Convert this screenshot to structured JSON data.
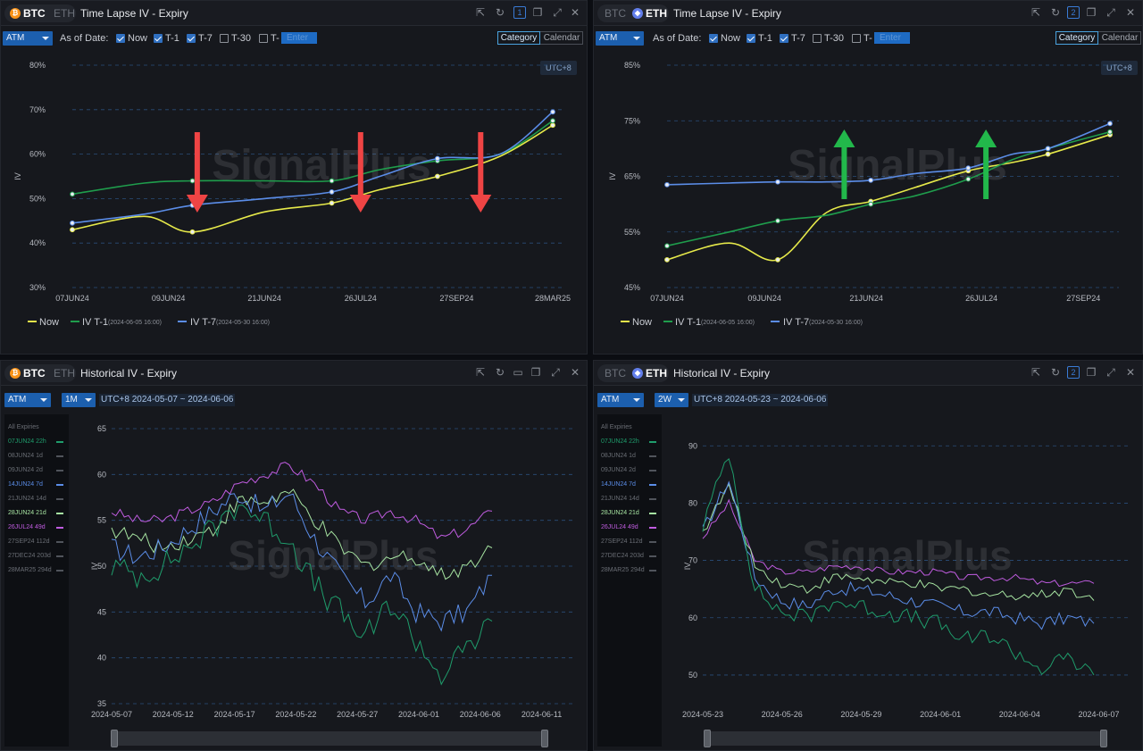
{
  "colors": {
    "now": "#e6e94a",
    "t1": "#1f9d4c",
    "t7": "#5b8de8",
    "grid": "#2a4d7a",
    "down_arrow": "#ef4444",
    "up_arrow": "#22b84b",
    "btc": "#f7931a",
    "eth": "#627eea"
  },
  "icons": [
    "share-icon",
    "refresh-icon",
    "link-group-icon",
    "copy-icon",
    "expand-icon",
    "close-icon",
    "folder-icon"
  ],
  "watermark": "SignalPlus",
  "panels": [
    {
      "coins": [
        "BTC",
        "ETH"
      ],
      "active_coin": "BTC",
      "title": "Time Lapse IV - Expiry",
      "link_group": "1",
      "controls": {
        "atm": "ATM",
        "as_of": "As of Date:",
        "checks": [
          {
            "label": "Now",
            "on": true
          },
          {
            "label": "T-1",
            "on": true
          },
          {
            "label": "T-7",
            "on": true
          },
          {
            "label": "T-30",
            "on": false
          },
          {
            "label": "T-",
            "on": false
          }
        ],
        "enter": "Enter",
        "category": "Category",
        "calendar": "Calendar"
      },
      "utc": "UTC+8",
      "legend": [
        {
          "label": "Now",
          "sub": ""
        },
        {
          "label": "IV T-1",
          "sub": "(2024-06-05 16:00)"
        },
        {
          "label": "IV T-7",
          "sub": "(2024-05-30 16:00)"
        }
      ],
      "chart_data": {
        "type": "line",
        "ylabel": "IV",
        "ylim": [
          30,
          80
        ],
        "yticks": [
          "30%",
          "40%",
          "50%",
          "60%",
          "70%",
          "80%"
        ],
        "xticks": [
          "07JUN24",
          "09JUN24",
          "21JUN24",
          "26JUL24",
          "27SEP24",
          "28MAR25"
        ],
        "x": [
          0,
          0.15,
          0.25,
          0.4,
          0.54,
          0.64,
          0.76,
          0.89,
          1.0
        ],
        "series": [
          {
            "name": "Now",
            "values": [
              43,
              46,
              42.5,
              47,
              49,
              52,
              55,
              59.5,
              66.5
            ]
          },
          {
            "name": "IV T-1",
            "values": [
              51,
              53.5,
              54,
              54,
              54,
              56.5,
              58.5,
              60,
              67.5
            ]
          },
          {
            "name": "IV T-7",
            "values": [
              44.5,
              46.5,
              48.5,
              50,
              51.5,
              55,
              59,
              60,
              69.5
            ]
          }
        ],
        "arrows": "down"
      }
    },
    {
      "coins": [
        "BTC",
        "ETH"
      ],
      "active_coin": "ETH",
      "title": "Time Lapse IV - Expiry",
      "link_group": "2",
      "controls": {
        "atm": "ATM",
        "as_of": "As of Date:",
        "checks": [
          {
            "label": "Now",
            "on": true
          },
          {
            "label": "T-1",
            "on": true
          },
          {
            "label": "T-7",
            "on": true
          },
          {
            "label": "T-30",
            "on": false
          },
          {
            "label": "T-",
            "on": false
          }
        ],
        "enter": "Enter",
        "category": "Category",
        "calendar": "Calendar"
      },
      "utc": "UTC+8",
      "legend": [
        {
          "label": "Now",
          "sub": ""
        },
        {
          "label": "IV T-1",
          "sub": "(2024-06-05 16:00)"
        },
        {
          "label": "IV T-7",
          "sub": "(2024-05-30 16:00)"
        }
      ],
      "chart_data": {
        "type": "line",
        "ylabel": "IV",
        "ylim": [
          45,
          85
        ],
        "yticks": [
          "45%",
          "55%",
          "65%",
          "75%",
          "85%"
        ],
        "xticks": [
          "07JUN24",
          "09JUN24",
          "21JUN24",
          "26JUL24",
          "27SEP24"
        ],
        "x": [
          0,
          0.14,
          0.25,
          0.36,
          0.46,
          0.56,
          0.68,
          0.78,
          0.86,
          1.0
        ],
        "series": [
          {
            "name": "Now",
            "values": [
              50,
              53,
              50,
              58.5,
              60.5,
              63,
              66,
              67.5,
              69,
              72.5
            ]
          },
          {
            "name": "IV T-1",
            "values": [
              52.5,
              55,
              57,
              58,
              60,
              61.5,
              64.5,
              68,
              70,
              73
            ]
          },
          {
            "name": "IV T-7",
            "values": [
              63.5,
              63.8,
              64,
              64,
              64.3,
              65.5,
              66.5,
              69,
              70,
              74.5
            ]
          }
        ],
        "arrows": "up"
      }
    },
    {
      "coins": [
        "BTC",
        "ETH"
      ],
      "active_coin": "BTC",
      "title": "Historical IV - Expiry",
      "controls": {
        "atm": "ATM",
        "period": "1M",
        "range": "UTC+8 2024-05-07 ~ 2024-06-06"
      },
      "expiries_header": "All Expiries",
      "expiries": [
        {
          "label": "07JUN24 22h",
          "color": "#1f9d6c",
          "on": true
        },
        {
          "label": "08JUN24 1d",
          "color": "#6a6e75",
          "on": false
        },
        {
          "label": "09JUN24 2d",
          "color": "#6a6e75",
          "on": false
        },
        {
          "label": "14JUN24 7d",
          "color": "#5b8de8",
          "on": true
        },
        {
          "label": "21JUN24 14d",
          "color": "#6a6e75",
          "on": false
        },
        {
          "label": "28JUN24 21d",
          "color": "#a6e3a1",
          "on": true
        },
        {
          "label": "26JUL24 49d",
          "color": "#c05ce0",
          "on": true
        },
        {
          "label": "27SEP24 112d",
          "color": "#6a6e75",
          "on": false
        },
        {
          "label": "27DEC24 203d",
          "color": "#6a6e75",
          "on": false
        },
        {
          "label": "28MAR25 294d",
          "color": "#6a6e75",
          "on": false
        }
      ],
      "chart_data": {
        "type": "line",
        "ylabel": "IV",
        "ylim": [
          35,
          65
        ],
        "yticks": [
          "35",
          "40",
          "45",
          "50",
          "55",
          "60",
          "65"
        ],
        "xticks": [
          "2024-05-07",
          "2024-05-12",
          "2024-05-17",
          "2024-05-22",
          "2024-05-27",
          "2024-06-01",
          "2024-06-06",
          "2024-06-11"
        ],
        "x": [
          "2024-05-07",
          "2024-05-09",
          "2024-05-11",
          "2024-05-13",
          "2024-05-15",
          "2024-05-17",
          "2024-05-19",
          "2024-05-21",
          "2024-05-23",
          "2024-05-25",
          "2024-05-27",
          "2024-05-29",
          "2024-05-31",
          "2024-06-02",
          "2024-06-04",
          "2024-06-06"
        ],
        "series": [
          {
            "name": "26JUL24 49d",
            "values": [
              56,
              55,
              55,
              56,
              57,
              59,
              60,
              61,
              59,
              56,
              55,
              56,
              55,
              53,
              54,
              56
            ]
          },
          {
            "name": "28JUN24 21d",
            "values": [
              54,
              53,
              52,
              53,
              54,
              57,
              57,
              58,
              55,
              52,
              50,
              51,
              51,
              49,
              50,
              52
            ]
          },
          {
            "name": "14JUN24 7d",
            "values": [
              52,
              51,
              52,
              54,
              56,
              58,
              56,
              58,
              53,
              49,
              46,
              49,
              45,
              44,
              45,
              49
            ]
          },
          {
            "name": "07JUN24 22h",
            "values": [
              50,
              49,
              50,
              52,
              54,
              57,
              55,
              53,
              48,
              45,
              42,
              46,
              42,
              38,
              41,
              44
            ]
          }
        ]
      }
    },
    {
      "coins": [
        "BTC",
        "ETH"
      ],
      "active_coin": "ETH",
      "title": "Historical IV - Expiry",
      "link_group": "2",
      "controls": {
        "atm": "ATM",
        "period": "2W",
        "range": "UTC+8 2024-05-23 ~ 2024-06-06"
      },
      "expiries_header": "All Expiries",
      "expiries": [
        {
          "label": "07JUN24 22h",
          "color": "#1f9d6c",
          "on": true
        },
        {
          "label": "08JUN24 1d",
          "color": "#6a6e75",
          "on": false
        },
        {
          "label": "09JUN24 2d",
          "color": "#6a6e75",
          "on": false
        },
        {
          "label": "14JUN24 7d",
          "color": "#5b8de8",
          "on": true
        },
        {
          "label": "21JUN24 14d",
          "color": "#6a6e75",
          "on": false
        },
        {
          "label": "28JUN24 21d",
          "color": "#a6e3a1",
          "on": true
        },
        {
          "label": "26JUL24 49d",
          "color": "#c05ce0",
          "on": true
        },
        {
          "label": "27SEP24 112d",
          "color": "#6a6e75",
          "on": false
        },
        {
          "label": "27DEC24 203d",
          "color": "#6a6e75",
          "on": false
        },
        {
          "label": "28MAR25 294d",
          "color": "#6a6e75",
          "on": false
        }
      ],
      "chart_data": {
        "type": "line",
        "ylabel": "IV",
        "ylim": [
          45,
          93
        ],
        "yticks": [
          "50",
          "60",
          "70",
          "80",
          "90"
        ],
        "xticks": [
          "2024-05-23",
          "2024-05-26",
          "2024-05-29",
          "2024-06-01",
          "2024-06-04",
          "2024-06-07"
        ],
        "x": [
          "2024-05-23",
          "2024-05-23 12h",
          "2024-05-24",
          "2024-05-25",
          "2024-05-26",
          "2024-05-27",
          "2024-05-28",
          "2024-05-29",
          "2024-05-30",
          "2024-05-31",
          "2024-06-01",
          "2024-06-02",
          "2024-06-03",
          "2024-06-04",
          "2024-06-05",
          "2024-06-06"
        ],
        "series": [
          {
            "name": "26JUL24 49d",
            "values": [
              74,
              80,
              70,
              68,
              68,
              69,
              69,
              68,
              68,
              68,
              67,
              67,
              67,
              66,
              66,
              66
            ]
          },
          {
            "name": "28JUN24 21d",
            "values": [
              75,
              83,
              69,
              66,
              65,
              67,
              67,
              66,
              66,
              65,
              65,
              64,
              64,
              64,
              65,
              63
            ]
          },
          {
            "name": "14JUN24 7d",
            "values": [
              75,
              84,
              67,
              63,
              62,
              65,
              65,
              64,
              63,
              62,
              61,
              61,
              60,
              59,
              60,
              59
            ]
          },
          {
            "name": "07JUN24 22h",
            "values": [
              76,
              89,
              65,
              61,
              60,
              63,
              62,
              61,
              60,
              59,
              56,
              57,
              54,
              51,
              53,
              50
            ]
          }
        ]
      }
    }
  ]
}
